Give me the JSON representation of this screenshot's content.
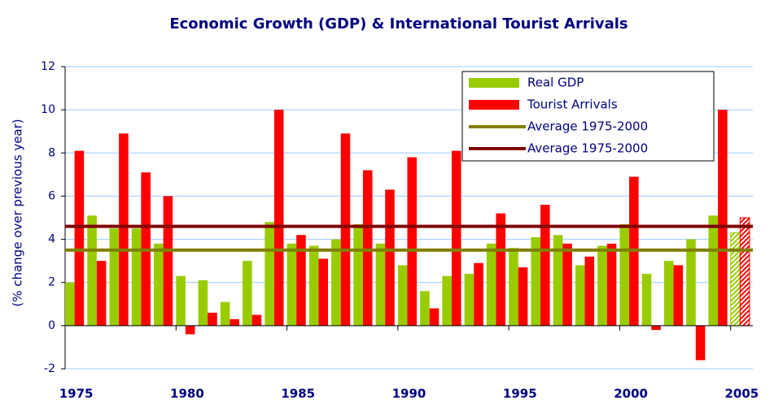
{
  "chart_data": {
    "type": "bar",
    "title": "Economic Growth (GDP) & International Tourist Arrivals",
    "y_label": "(% change over previous year)",
    "categories": [
      "1975",
      null,
      null,
      null,
      null,
      "1980",
      null,
      null,
      null,
      null,
      "1985",
      null,
      null,
      null,
      null,
      "1990",
      null,
      null,
      null,
      null,
      "1995",
      null,
      null,
      null,
      null,
      "2000",
      null,
      null,
      null,
      null,
      "2005"
    ],
    "series": [
      {
        "name": "Real GDP",
        "color": "#99cc00",
        "values": [
          2.0,
          5.1,
          4.5,
          4.5,
          3.8,
          2.3,
          2.1,
          1.1,
          3.0,
          4.8,
          3.8,
          3.7,
          4.0,
          4.7,
          3.8,
          2.8,
          1.6,
          2.3,
          2.4,
          3.8,
          3.6,
          4.1,
          4.2,
          2.8,
          3.7,
          4.7,
          2.4,
          3.0,
          4.0,
          5.1,
          4.3
        ]
      },
      {
        "name": "Tourist Arrivals",
        "color": "#ff0000",
        "values": [
          8.1,
          3.0,
          8.9,
          7.1,
          6.0,
          -0.4,
          0.6,
          0.3,
          0.5,
          10.0,
          4.2,
          3.1,
          8.9,
          7.2,
          6.3,
          7.8,
          0.8,
          8.1,
          2.9,
          5.2,
          2.7,
          5.6,
          3.8,
          3.2,
          3.8,
          6.9,
          -0.2,
          2.8,
          -1.6,
          10.0,
          5.0
        ]
      }
    ],
    "averages": [
      {
        "name": "Average 1975-2000",
        "color": "#808000",
        "value": 3.5
      },
      {
        "name": "Average 1975-2000",
        "color": "#800000",
        "value": 4.6
      }
    ],
    "hatched_last": true,
    "ylim": [
      -2,
      12
    ],
    "yticks": [
      -2,
      0,
      2,
      4,
      6,
      8,
      10,
      12
    ],
    "grid": true,
    "legend": "top-right"
  }
}
